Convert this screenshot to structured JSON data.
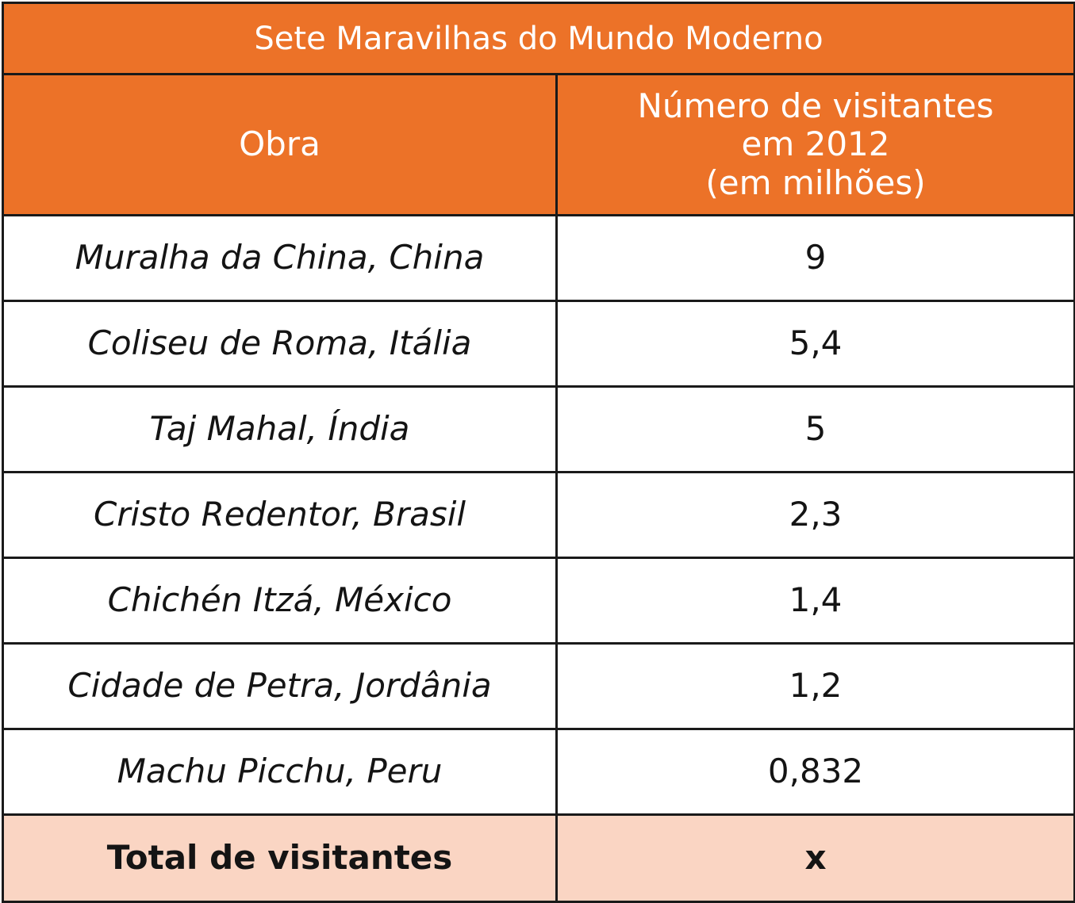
{
  "chart_data": {
    "type": "table",
    "title": "Sete Maravilhas do Mundo Moderno",
    "columns": [
      "Obra",
      [
        "Número de visitantes",
        "em 2012",
        "(em milhões)"
      ]
    ],
    "rows": [
      {
        "obra": "Muralha da China, China",
        "visitantes": "9"
      },
      {
        "obra": "Coliseu de Roma, Itália",
        "visitantes": "5,4"
      },
      {
        "obra": "Taj Mahal, Índia",
        "visitantes": "5"
      },
      {
        "obra": "Cristo Redentor, Brasil",
        "visitantes": "2,3"
      },
      {
        "obra": "Chichén Itzá, México",
        "visitantes": "1,4"
      },
      {
        "obra": "Cidade de Petra, Jordânia",
        "visitantes": "1,2"
      },
      {
        "obra": "Machu Picchu, Peru",
        "visitantes": "0,832"
      }
    ],
    "total": {
      "label": "Total de visitantes",
      "value": "x"
    }
  },
  "colors": {
    "header_bg": "#ec7228",
    "header_text": "#ffffff",
    "total_bg": "#fad5c3",
    "border": "#1a1a1a"
  }
}
